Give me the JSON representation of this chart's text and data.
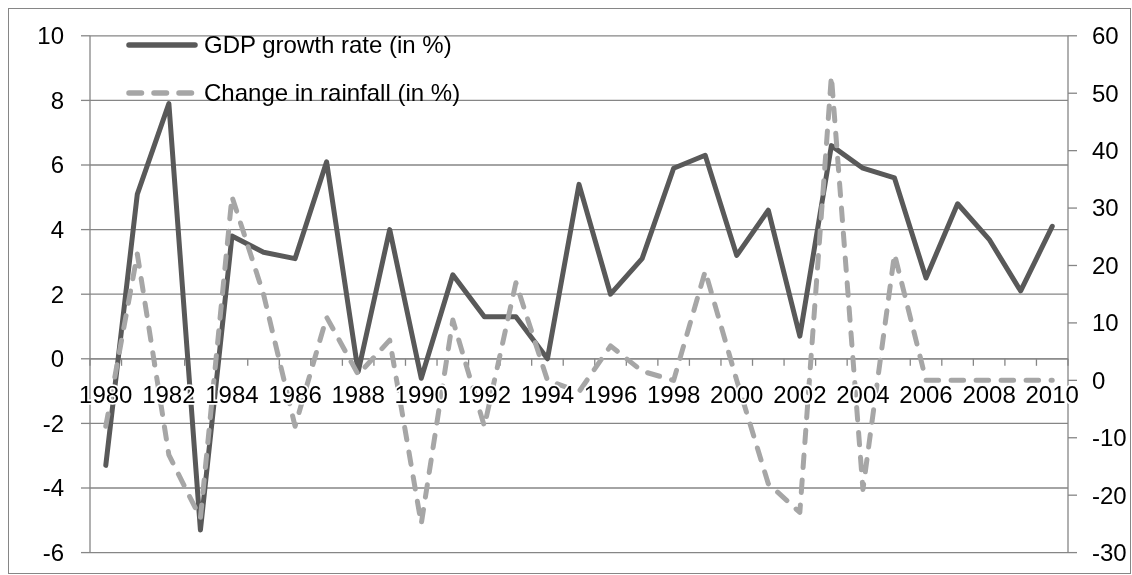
{
  "chart_data": {
    "type": "line",
    "categories": [
      "1980",
      null,
      "1982",
      null,
      "1984",
      null,
      "1986",
      null,
      "1988",
      null,
      "1990",
      null,
      "1992",
      null,
      "1994",
      null,
      "1996",
      null,
      "1998",
      null,
      "2000",
      null,
      "2002",
      null,
      "2004",
      null,
      "2006",
      null,
      "2008",
      null,
      "2010"
    ],
    "series": [
      {
        "name": "GDP growth rate (in %)",
        "color": "#595959",
        "line_style": "solid",
        "values": [
          -3.3,
          5.1,
          7.9,
          -5.3,
          3.8,
          3.3,
          3.1,
          6.1,
          -0.4,
          4.0,
          -0.6,
          2.6,
          1.3,
          1.3,
          0.0,
          5.4,
          2.0,
          3.1,
          5.9,
          6.3,
          3.2,
          4.6,
          0.7,
          6.6,
          5.9,
          5.6,
          2.5,
          4.8,
          3.7,
          2.1,
          4.1
        ]
      },
      {
        "name": "Change in rainfall (in %)",
        "color": "#a6a6a6",
        "line_style": "dashed",
        "axis": "y2",
        "values": [
          -8,
          22,
          -13,
          -24,
          32,
          15,
          -8,
          11,
          1,
          7,
          -25,
          10.5,
          -8,
          17,
          0,
          -2,
          6,
          1.6,
          0,
          19,
          0,
          -18,
          -23,
          53,
          -19,
          22,
          0,
          0,
          0,
          0,
          0
        ]
      }
    ],
    "ylim": [
      -6,
      10
    ],
    "yticks": [
      -6,
      -4,
      -2,
      0,
      2,
      4,
      6,
      8,
      10
    ],
    "y2lim": [
      -30,
      60
    ],
    "y2ticks": [
      -30,
      -20,
      -10,
      0,
      10,
      20,
      30,
      40,
      50,
      60
    ],
    "grid": "y",
    "legend": "top left"
  }
}
